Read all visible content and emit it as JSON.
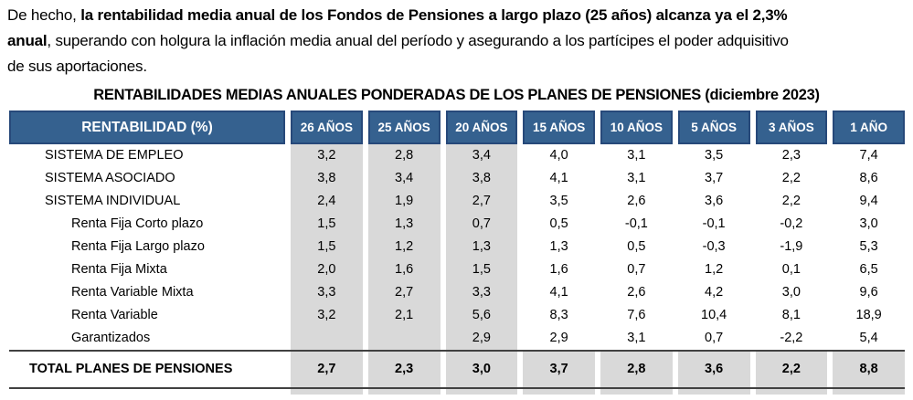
{
  "paragraph": {
    "lines": [
      [
        {
          "text": "De hecho, ",
          "bold": false
        },
        {
          "text": "la rentabilidad media anual de los Fondos de Pensiones a largo plazo (25 años) alcanza ya el 2,3%",
          "bold": true
        }
      ],
      [
        {
          "text": "anual",
          "bold": true
        },
        {
          "text": ", superando con holgura la inflación media anual del período y asegurando a los partícipes el poder adquisitivo",
          "bold": false
        }
      ],
      [
        {
          "text": "de sus aportaciones.",
          "bold": false
        }
      ]
    ]
  },
  "table": {
    "title": "RENTABILIDADES MEDIAS ANUALES PONDERADAS DE LOS PLANES DE PENSIONES (diciembre 2023)",
    "header_label": "RENTABILIDAD (%)",
    "columns": [
      "26 AÑOS",
      "25 AÑOS",
      "20 AÑOS",
      "15 AÑOS",
      "10 AÑOS",
      "5 AÑOS",
      "3 AÑOS",
      "1 AÑO"
    ],
    "shaded_columns": [
      0,
      1,
      2
    ],
    "rows": [
      {
        "label": "SISTEMA DE EMPLEO",
        "indent": 1,
        "values": [
          "3,2",
          "2,8",
          "3,4",
          "4,0",
          "3,1",
          "3,5",
          "2,3",
          "7,4"
        ]
      },
      {
        "label": "SISTEMA ASOCIADO",
        "indent": 1,
        "values": [
          "3,8",
          "3,4",
          "3,8",
          "4,1",
          "3,1",
          "3,7",
          "2,2",
          "8,6"
        ]
      },
      {
        "label": "SISTEMA INDIVIDUAL",
        "indent": 1,
        "values": [
          "2,4",
          "1,9",
          "2,7",
          "3,5",
          "2,6",
          "3,6",
          "2,2",
          "9,4"
        ]
      },
      {
        "label": "Renta Fija Corto plazo",
        "indent": 2,
        "values": [
          "1,5",
          "1,3",
          "0,7",
          "0,5",
          "-0,1",
          "-0,1",
          "-0,2",
          "3,0"
        ]
      },
      {
        "label": "Renta Fija Largo plazo",
        "indent": 2,
        "values": [
          "1,5",
          "1,2",
          "1,3",
          "1,3",
          "0,5",
          "-0,3",
          "-1,9",
          "5,3"
        ]
      },
      {
        "label": "Renta Fija Mixta",
        "indent": 2,
        "values": [
          "2,0",
          "1,6",
          "1,5",
          "1,6",
          "0,7",
          "1,2",
          "0,1",
          "6,5"
        ]
      },
      {
        "label": "Renta Variable Mixta",
        "indent": 2,
        "values": [
          "3,3",
          "2,7",
          "3,3",
          "4,1",
          "2,6",
          "4,2",
          "3,0",
          "9,6"
        ]
      },
      {
        "label": "Renta Variable",
        "indent": 2,
        "values": [
          "3,2",
          "2,1",
          "5,6",
          "8,3",
          "7,6",
          "10,4",
          "8,1",
          "18,9"
        ]
      },
      {
        "label": "Garantizados",
        "indent": 2,
        "values": [
          "",
          "",
          "2,9",
          "2,9",
          "3,1",
          "0,7",
          "-2,2",
          "5,4"
        ]
      }
    ],
    "total": {
      "label": "TOTAL PLANES DE PENSIONES",
      "values": [
        "2,7",
        "2,3",
        "3,0",
        "3,7",
        "2,8",
        "3,6",
        "2,2",
        "8,8"
      ]
    }
  },
  "colors": {
    "header_bg": "#35618F",
    "header_border": "#27497A",
    "shade": "#D9D9D9",
    "rule": "#414141",
    "text": "#000000",
    "header_text": "#FFFFFF"
  }
}
